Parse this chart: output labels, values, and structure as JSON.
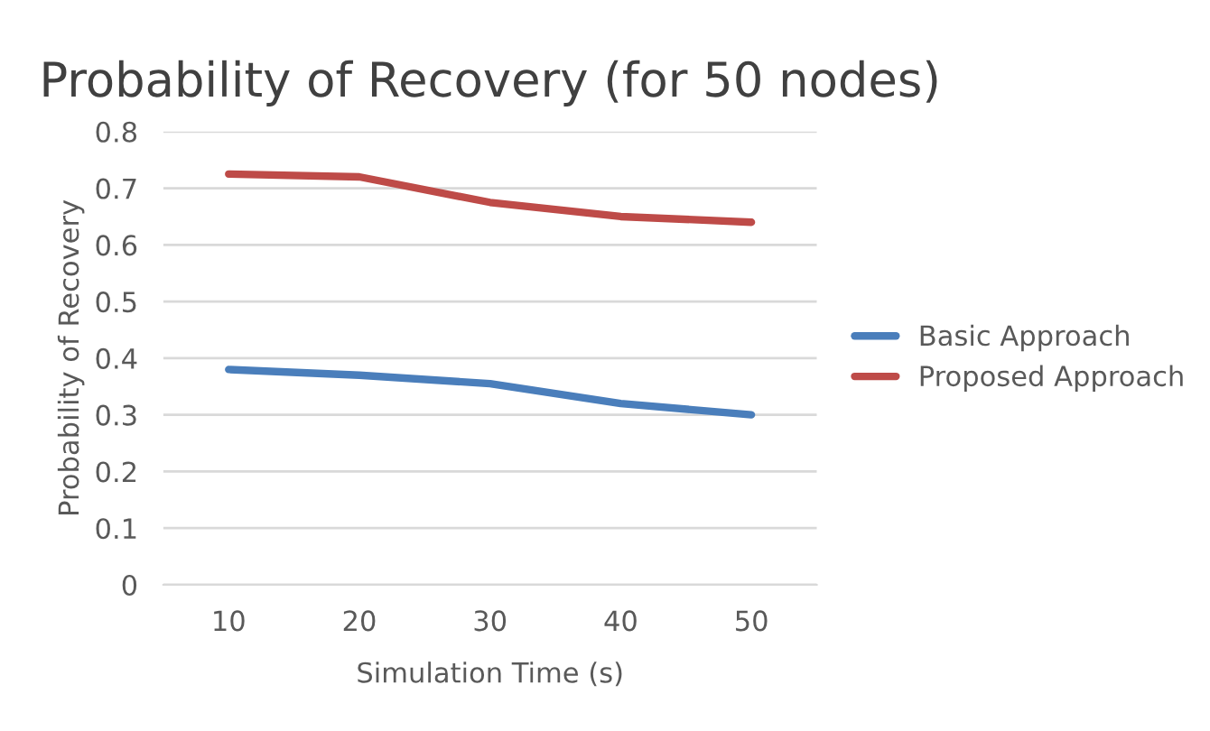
{
  "chart_data": {
    "type": "line",
    "title": "Probability of Recovery (for 50 nodes)",
    "xlabel": "Simulation Time (s)",
    "ylabel": "Probability of Recovery",
    "categories": [
      "10",
      "20",
      "30",
      "40",
      "50"
    ],
    "series": [
      {
        "name": "Basic Approach",
        "color": "#4a7ebb",
        "values": [
          0.38,
          0.37,
          0.355,
          0.32,
          0.3
        ]
      },
      {
        "name": "Proposed Approach",
        "color": "#be4b48",
        "values": [
          0.725,
          0.72,
          0.675,
          0.65,
          0.64
        ]
      }
    ],
    "ylim": [
      0,
      0.8
    ],
    "yticks": [
      {
        "value": 0,
        "label": "0"
      },
      0.1,
      0.2,
      0.3,
      0.4,
      0.5,
      0.6,
      0.7,
      0.8
    ],
    "grid": "y",
    "legend": "right",
    "marker": "none",
    "line_style": "solid"
  }
}
